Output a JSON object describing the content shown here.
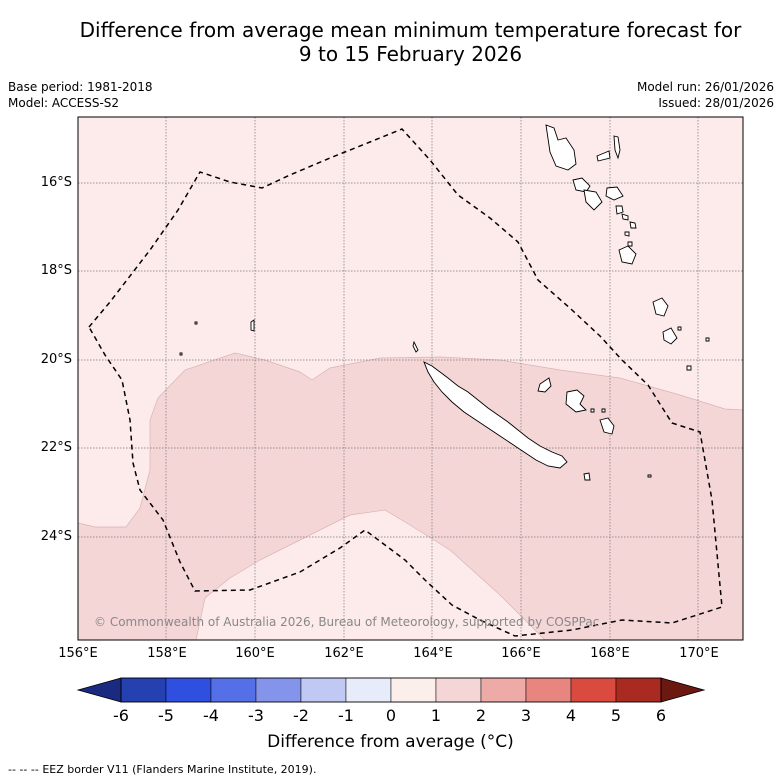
{
  "title_line1": "Difference from average mean minimum temperature forecast for",
  "title_line2": "9 to 15 February 2026",
  "base_period": "Base period: 1981-2018",
  "model": "Model: ACCESS-S2",
  "model_run": "Model run: 26/01/2026",
  "issued": "Issued: 28/01/2026",
  "latitude_labels": [
    "16°S",
    "18°S",
    "20°S",
    "22°S",
    "24°S"
  ],
  "longitude_labels": [
    "156°E",
    "158°E",
    "160°E",
    "162°E",
    "164°E",
    "166°E",
    "168°E",
    "170°E"
  ],
  "copyright": "© Commonwealth of Australia 2026, Bureau of Meteorology, supported by COSPPac",
  "colorbar": {
    "title": "Difference from average (°C)",
    "tick_labels": [
      "-6",
      "-5",
      "-4",
      "-3",
      "-2",
      "-1",
      "0",
      "1",
      "2",
      "3",
      "4",
      "5",
      "6"
    ],
    "colors": [
      "#1a2a80",
      "#2540b0",
      "#2f4fe0",
      "#5570e6",
      "#8494ea",
      "#c0c8f4",
      "#e8ebf9",
      "#fceeea",
      "#f5d6d6",
      "#eeaaa6",
      "#e8857e",
      "#da4a3e",
      "#a82a20",
      "#6a1810"
    ]
  },
  "legend": {
    "line_style": "-- -- --",
    "label": "EEZ border V11 (Flanders Marine Institute, 2019)."
  }
}
